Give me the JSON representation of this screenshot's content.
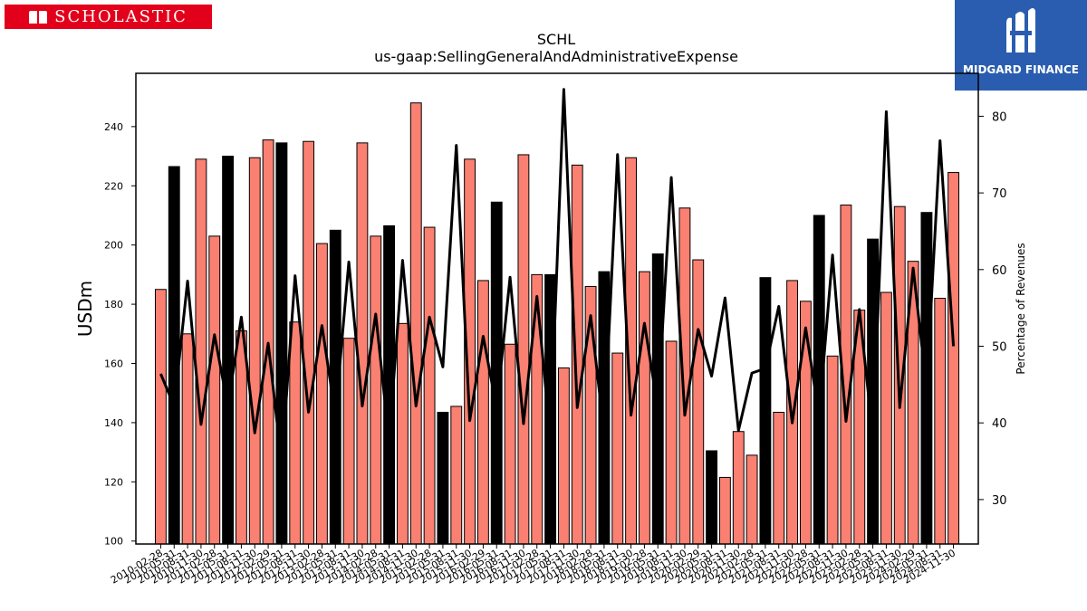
{
  "logos": {
    "left_text": "SCHOLASTIC",
    "right_text": "MIDGARD FINANCE"
  },
  "chart_data": {
    "type": "bar",
    "title": "SCHL",
    "subtitle": "us-gaap:SellingGeneralAndAdministrativeExpense",
    "ylabel": "USDm",
    "y2label": "Percentage of Revenues",
    "ylim": [
      99,
      258
    ],
    "y2lim": [
      24.2,
      85.6
    ],
    "yticks": [
      100,
      120,
      140,
      160,
      180,
      200,
      220,
      240
    ],
    "y2ticks": [
      30,
      40,
      50,
      60,
      70,
      80
    ],
    "colors": {
      "bar": "#fa8072",
      "bar_q4": "#000000",
      "line": "#000000"
    },
    "categories": [
      "2010-02-28",
      "2010-05-31",
      "2010-08-31",
      "2010-11-30",
      "2011-02-28",
      "2011-05-31",
      "2011-08-31",
      "2011-11-30",
      "2012-02-29",
      "2012-05-31",
      "2012-08-31",
      "2012-11-30",
      "2013-02-28",
      "2013-05-31",
      "2013-08-31",
      "2013-11-30",
      "2014-02-28",
      "2014-05-31",
      "2014-08-31",
      "2014-11-30",
      "2015-02-28",
      "2015-05-31",
      "2015-08-31",
      "2015-11-30",
      "2016-02-29",
      "2016-05-31",
      "2016-08-31",
      "2016-11-30",
      "2017-02-28",
      "2017-05-31",
      "2017-08-31",
      "2017-11-30",
      "2018-02-28",
      "2018-05-31",
      "2018-08-31",
      "2018-11-30",
      "2019-02-28",
      "2019-05-31",
      "2019-08-31",
      "2019-11-30",
      "2020-02-29",
      "2020-05-31",
      "2020-08-31",
      "2020-11-30",
      "2021-02-28",
      "2021-05-31",
      "2021-08-31",
      "2021-11-30",
      "2022-02-28",
      "2022-05-31",
      "2022-08-31",
      "2022-11-30",
      "2023-02-28",
      "2023-05-31",
      "2023-08-31",
      "2023-11-30",
      "2024-02-29",
      "2024-05-31",
      "2024-08-31",
      "2024-11-30"
    ],
    "series": [
      {
        "axis": "left",
        "values": [
          185,
          226.5,
          170,
          229,
          203,
          230,
          171,
          229.5,
          235.5,
          234.5,
          174,
          235,
          200.5,
          205,
          168.5,
          234.5,
          203,
          206.5,
          173.5,
          248,
          206,
          143.5,
          145.5,
          229,
          188,
          214.5,
          166.5,
          230.5,
          190,
          190,
          158.5,
          227,
          186,
          191,
          163.5,
          229.5,
          191,
          197,
          167.5,
          212.5,
          195,
          130.5,
          121.5,
          137,
          129,
          189,
          143.5,
          188,
          181,
          210,
          162.5,
          213.5,
          178,
          202,
          184,
          213,
          194.5,
          211,
          182,
          224.5
        ]
      },
      {
        "axis": "right",
        "values": [
          46.4,
          42.2,
          58.5,
          39.8,
          51.5,
          42.2,
          53.8,
          38.7,
          50.4,
          34.7,
          59.2,
          41.4,
          52.7,
          41.0,
          61.0,
          42.2,
          54.2,
          37.7,
          61.2,
          42.2,
          53.8,
          47.3,
          76.2,
          40.3,
          51.3,
          41.9,
          59.0,
          39.9,
          56.5,
          38.2,
          83.5,
          42.0,
          54.0,
          38.7,
          75.0,
          41.0,
          53.0,
          41.9,
          72.0,
          41.0,
          52.2,
          46.1,
          56.3,
          39.0,
          46.5,
          47.1,
          55.2,
          40.0,
          52.4,
          40.9,
          61.9,
          40.2,
          54.8,
          38.3,
          80.6,
          42.0,
          60.2,
          44.5,
          76.8,
          50.0
        ]
      }
    ]
  }
}
